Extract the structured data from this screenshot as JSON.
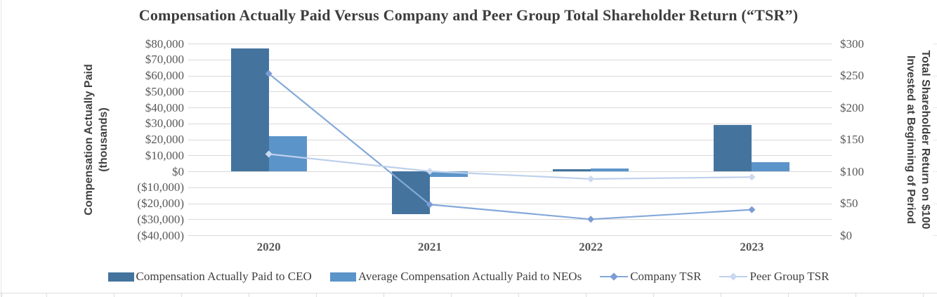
{
  "chart_data": {
    "type": "bar+line",
    "title": "Compensation Actually Paid Versus Company and Peer Group Total Shareholder Return (“TSR”)",
    "categories": [
      "2020",
      "2021",
      "2022",
      "2023"
    ],
    "series": [
      {
        "name": "Compensation Actually Paid to CEO",
        "type": "bar",
        "axis": "left",
        "color": "#44749e",
        "values": [
          77000,
          -27000,
          1300,
          29000
        ]
      },
      {
        "name": "Average Compensation Actually Paid to NEOs",
        "type": "bar",
        "axis": "left",
        "color": "#5b94c9",
        "values": [
          22000,
          -3600,
          1700,
          5900
        ]
      },
      {
        "name": "Company TSR",
        "type": "line",
        "axis": "right",
        "color": "#84a8da",
        "marker": "#7b9cd4",
        "values": [
          253,
          48,
          25,
          40
        ]
      },
      {
        "name": "Peer Group TSR",
        "type": "line",
        "axis": "right",
        "color": "#bed0ec",
        "marker": "#cbd9f0",
        "values": [
          127,
          100,
          88,
          91
        ]
      }
    ],
    "axes": {
      "left": {
        "label_line1": "Compensation Actually Paid",
        "label_line2": "(thousands)",
        "ticks": [
          "$80,000",
          "$70,000",
          "$60,000",
          "$50,000",
          "$40,000",
          "$30,000",
          "$20,000",
          "$10,000",
          "$0",
          "($10,000)",
          "($20,000)",
          "($30,000)",
          "($40,000)"
        ],
        "range": [
          -40000,
          80000
        ]
      },
      "right": {
        "label_line1": "Total Shareholder Return on $100",
        "label_line2": "Invested at Beginning of Period",
        "ticks": [
          "$300",
          "$250",
          "$200",
          "$150",
          "$100",
          "$50",
          "$0"
        ],
        "range": [
          0,
          300
        ]
      }
    },
    "grid": true,
    "legend_position": "bottom",
    "colors": {
      "gridline": "#d9d9d9",
      "tick_text": "#595959",
      "title_text": "#3d3d3d"
    }
  }
}
